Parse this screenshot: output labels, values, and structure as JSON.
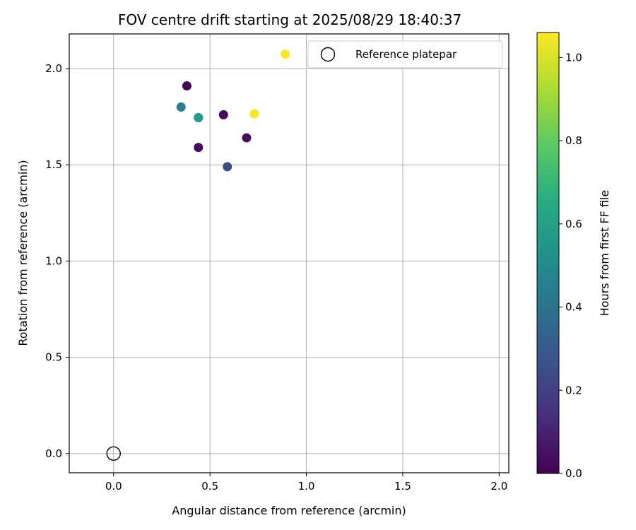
{
  "chart_data": {
    "type": "scatter",
    "title": "FOV centre drift starting at 2025/08/29 18:40:37",
    "xlabel": "Angular distance from reference (arcmin)",
    "ylabel": "Rotation from reference (arcmin)",
    "xlim": [
      -0.23,
      2.05
    ],
    "ylim": [
      -0.1,
      2.18
    ],
    "xticks": [
      0.0,
      0.5,
      1.0,
      1.5,
      2.0
    ],
    "xtick_labels": [
      "0.0",
      "0.5",
      "1.0",
      "1.5",
      "2.0"
    ],
    "yticks": [
      0.0,
      0.5,
      1.0,
      1.5,
      2.0
    ],
    "ytick_labels": [
      "0.0",
      "0.5",
      "1.0",
      "1.5",
      "2.0"
    ],
    "grid": true,
    "legend": {
      "location": "upper-right",
      "entries": [
        "Reference platepar"
      ]
    },
    "reference_point": {
      "x": 0.0,
      "y": 0.0,
      "name": "Reference platepar"
    },
    "points": [
      {
        "x": 0.38,
        "y": 1.91,
        "c": 0.0
      },
      {
        "x": 0.44,
        "y": 1.59,
        "c": 0.02
      },
      {
        "x": 0.57,
        "y": 1.76,
        "c": 0.03
      },
      {
        "x": 0.69,
        "y": 1.64,
        "c": 0.04
      },
      {
        "x": 0.59,
        "y": 1.49,
        "c": 0.25
      },
      {
        "x": 0.35,
        "y": 1.8,
        "c": 0.45
      },
      {
        "x": 0.44,
        "y": 1.745,
        "c": 0.55
      },
      {
        "x": 0.44,
        "y": 1.745,
        "c": 0.58
      },
      {
        "x": 0.73,
        "y": 1.765,
        "c": 1.05
      },
      {
        "x": 0.89,
        "y": 2.075,
        "c": 1.05
      }
    ],
    "colorbar": {
      "label": "Hours from first FF file",
      "colormap": "viridis",
      "range": [
        0.0,
        1.06
      ],
      "ticks": [
        0.0,
        0.2,
        0.4,
        0.6,
        0.8,
        1.0
      ],
      "tick_labels": [
        "0.0",
        "0.2",
        "0.4",
        "0.6",
        "0.8",
        "1.0"
      ]
    },
    "colors": {
      "grid": "#b0b0b0",
      "axes": "#000000",
      "reference_marker": "#000000"
    }
  }
}
